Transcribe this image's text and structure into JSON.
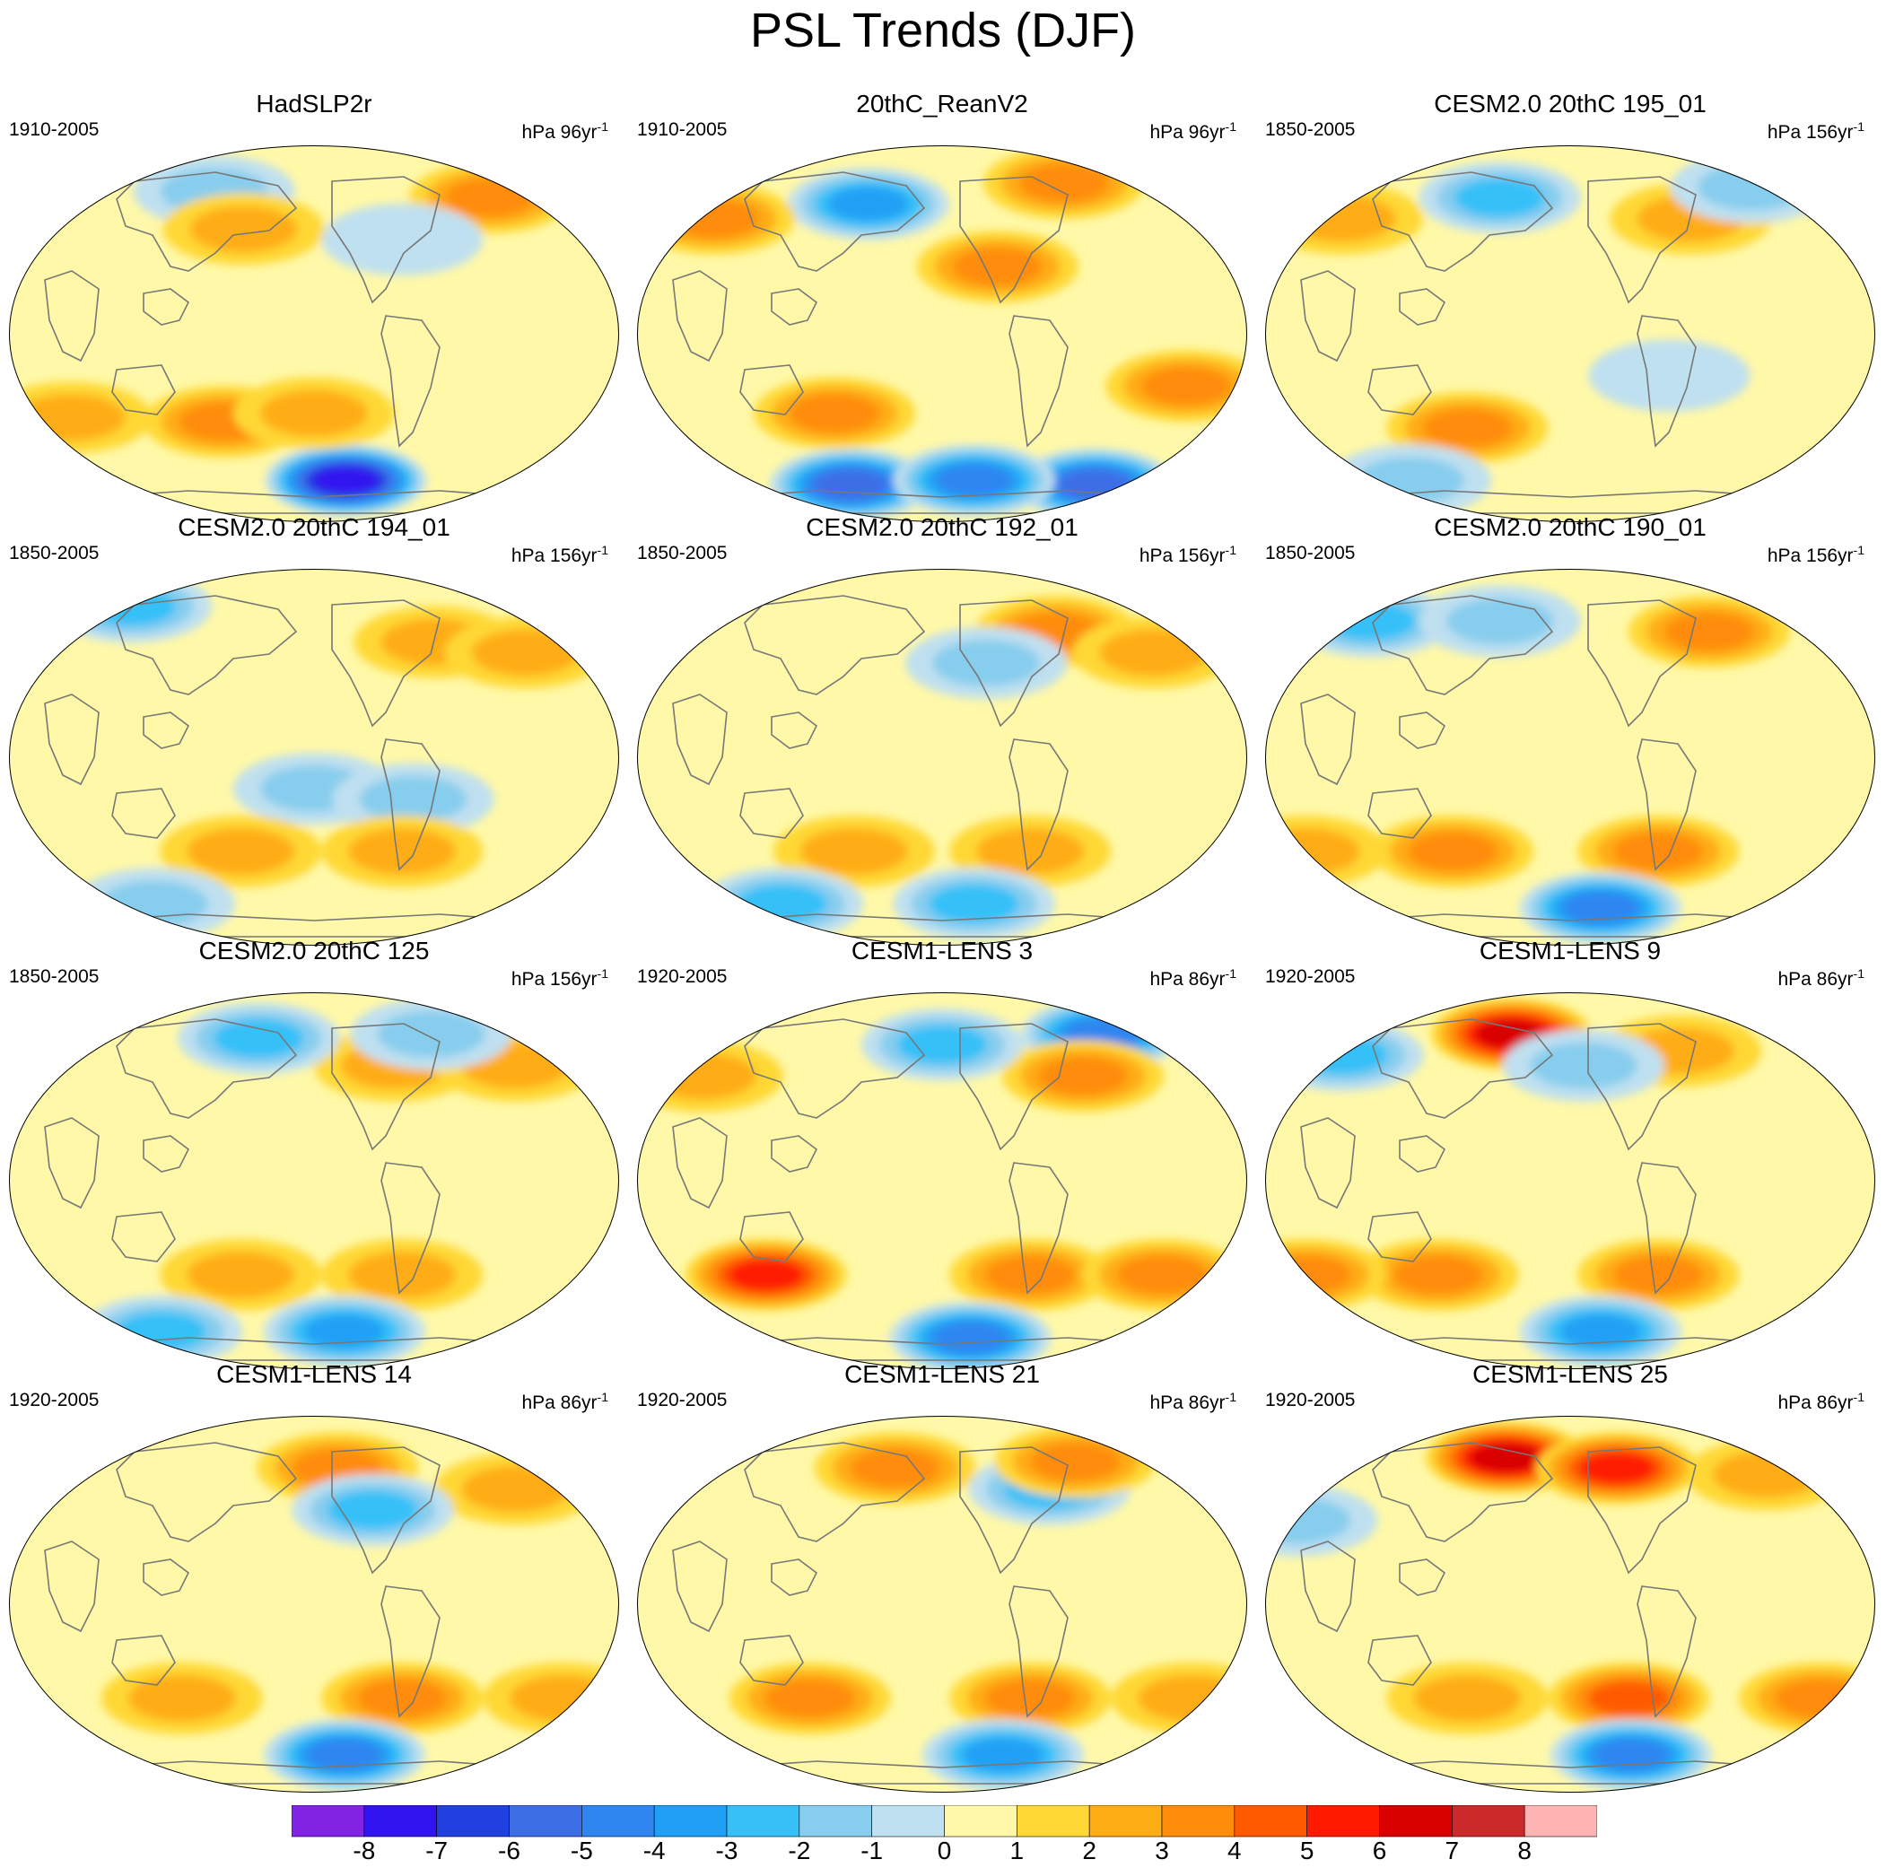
{
  "main_title": "PSL Trends (DJF)",
  "colorbar": {
    "levels": [
      "-8",
      "-7",
      "-6",
      "-5",
      "-4",
      "-3",
      "-2",
      "-1",
      "0",
      "1",
      "2",
      "3",
      "4",
      "5",
      "6",
      "7",
      "8"
    ],
    "colors": [
      "#8224e3",
      "#3214f0",
      "#2040e0",
      "#3d6ee6",
      "#2f86f0",
      "#20a0f5",
      "#35c0f8",
      "#87cdee",
      "#bfe0f0",
      "#fff8a8",
      "#ffd836",
      "#ffad14",
      "#ff8c0a",
      "#ff5a00",
      "#ff1a00",
      "#d90000",
      "#cc2a2a",
      "#ffb4b4"
    ]
  },
  "chart_data": [
    {
      "type": "heatmap",
      "title": "HadSLP2r",
      "period": "1910-2005",
      "units": "hPa 96yr",
      "units_sup": "-1",
      "field": [
        {
          "lon": 180,
          "lat": -70,
          "v": -8
        },
        {
          "lon": 90,
          "lat": -42,
          "v": 3
        },
        {
          "lon": -60,
          "lat": 65,
          "v": 2.5
        },
        {
          "lon": 60,
          "lat": 68,
          "v": -2
        },
        {
          "lon": -10,
          "lat": -40,
          "v": 1.5
        },
        {
          "lon": 150,
          "lat": -38,
          "v": 2
        },
        {
          "lon": -150,
          "lat": 45,
          "v": -1
        },
        {
          "lon": 100,
          "lat": 50,
          "v": 1.5
        }
      ]
    },
    {
      "type": "heatmap",
      "title": "20thC_ReanV2",
      "period": "1910-2005",
      "units": "hPa 96yr",
      "units_sup": "-1",
      "field": [
        {
          "lon": 60,
          "lat": -72,
          "v": -6
        },
        {
          "lon": -60,
          "lat": -72,
          "v": -6
        },
        {
          "lon": 180,
          "lat": -70,
          "v": -5
        },
        {
          "lon": 90,
          "lat": 62,
          "v": -4
        },
        {
          "lon": -175,
          "lat": 32,
          "v": 2.5
        },
        {
          "lon": -90,
          "lat": 72,
          "v": 3
        },
        {
          "lon": -20,
          "lat": 55,
          "v": 3
        },
        {
          "lon": -60,
          "lat": -25,
          "v": 3
        },
        {
          "lon": 80,
          "lat": -38,
          "v": 3
        }
      ]
    },
    {
      "type": "heatmap",
      "title": "CESM2.0 20thC 195_01",
      "period": "1850-2005",
      "units": "hPa 156yr",
      "units_sup": "-1",
      "field": [
        {
          "lon": 80,
          "lat": -45,
          "v": 3
        },
        {
          "lon": -120,
          "lat": 55,
          "v": 2
        },
        {
          "lon": -20,
          "lat": 55,
          "v": 2
        },
        {
          "lon": 90,
          "lat": 65,
          "v": -2.5
        },
        {
          "lon": -40,
          "lat": 70,
          "v": -2
        },
        {
          "lon": -150,
          "lat": -20,
          "v": -1
        },
        {
          "lon": 0,
          "lat": -70,
          "v": -1.5
        }
      ]
    },
    {
      "type": "heatmap",
      "title": "CESM2.0 20thC 194_01",
      "period": "1850-2005",
      "units": "hPa 156yr",
      "units_sup": "-1",
      "field": [
        {
          "lon": -120,
          "lat": 55,
          "v": 2
        },
        {
          "lon": -60,
          "lat": 50,
          "v": 2
        },
        {
          "lon": -30,
          "lat": 72,
          "v": -2.5
        },
        {
          "lon": 150,
          "lat": -15,
          "v": -1.5
        },
        {
          "lon": -150,
          "lat": -20,
          "v": -1.5
        },
        {
          "lon": 100,
          "lat": -45,
          "v": 1.5
        },
        {
          "lon": -150,
          "lat": -45,
          "v": 1.5
        },
        {
          "lon": 0,
          "lat": -70,
          "v": -1.5
        }
      ]
    },
    {
      "type": "heatmap",
      "title": "CESM2.0 20thC 192_01",
      "period": "1850-2005",
      "units": "hPa 156yr",
      "units_sup": "-1",
      "field": [
        {
          "lon": -120,
          "lat": 60,
          "v": 2.5
        },
        {
          "lon": -60,
          "lat": 50,
          "v": 2
        },
        {
          "lon": 180,
          "lat": 45,
          "v": -1.5
        },
        {
          "lon": -150,
          "lat": -45,
          "v": 2
        },
        {
          "lon": 90,
          "lat": -45,
          "v": 2
        },
        {
          "lon": 0,
          "lat": -70,
          "v": -2.5
        },
        {
          "lon": 180,
          "lat": -70,
          "v": -2.5
        }
      ]
    },
    {
      "type": "heatmap",
      "title": "CESM2.0 20thC 190_01",
      "period": "1850-2005",
      "units": "hPa 156yr",
      "units_sup": "-1",
      "field": [
        {
          "lon": -100,
          "lat": 60,
          "v": 2.5
        },
        {
          "lon": -20,
          "lat": 65,
          "v": -2.5
        },
        {
          "lon": 90,
          "lat": 65,
          "v": -2
        },
        {
          "lon": 70,
          "lat": -45,
          "v": 3
        },
        {
          "lon": -150,
          "lat": -45,
          "v": 2.5
        },
        {
          "lon": -30,
          "lat": -45,
          "v": 2
        },
        {
          "lon": 180,
          "lat": -72,
          "v": -4.5
        }
      ]
    },
    {
      "type": "heatmap",
      "title": "CESM2.0 20thC 125",
      "period": "1850-2005",
      "units": "hPa 156yr",
      "units_sup": "-1",
      "field": [
        {
          "lon": -150,
          "lat": 55,
          "v": 2
        },
        {
          "lon": -60,
          "lat": 55,
          "v": 2
        },
        {
          "lon": 100,
          "lat": 68,
          "v": -2.5
        },
        {
          "lon": -100,
          "lat": 70,
          "v": -2
        },
        {
          "lon": 100,
          "lat": -45,
          "v": 2
        },
        {
          "lon": -150,
          "lat": -45,
          "v": 2
        },
        {
          "lon": 180,
          "lat": -72,
          "v": -3.5
        },
        {
          "lon": 0,
          "lat": -72,
          "v": -3
        }
      ]
    },
    {
      "type": "heatmap",
      "title": "CESM1-LENS 3",
      "period": "1920-2005",
      "units": "hPa 86yr",
      "units_sup": "-1",
      "field": [
        {
          "lon": 30,
          "lat": -45,
          "v": 5
        },
        {
          "lon": -150,
          "lat": -45,
          "v": 2.5
        },
        {
          "lon": -60,
          "lat": -45,
          "v": 3
        },
        {
          "lon": -60,
          "lat": 70,
          "v": -5
        },
        {
          "lon": -110,
          "lat": 50,
          "v": 2.5
        },
        {
          "lon": -20,
          "lat": 50,
          "v": 2
        },
        {
          "lon": 150,
          "lat": 65,
          "v": -2.5
        },
        {
          "lon": 180,
          "lat": -75,
          "v": -5
        }
      ]
    },
    {
      "type": "heatmap",
      "title": "CESM1-LENS 9",
      "period": "1920-2005",
      "units": "hPa 86yr",
      "units_sup": "-1",
      "field": [
        {
          "lon": 95,
          "lat": 70,
          "v": 6
        },
        {
          "lon": -120,
          "lat": 62,
          "v": 2
        },
        {
          "lon": -30,
          "lat": 60,
          "v": -2.5
        },
        {
          "lon": 160,
          "lat": 55,
          "v": -2
        },
        {
          "lon": 60,
          "lat": -45,
          "v": 3
        },
        {
          "lon": -150,
          "lat": -45,
          "v": 2.5
        },
        {
          "lon": -30,
          "lat": -45,
          "v": 2.5
        },
        {
          "lon": 180,
          "lat": -72,
          "v": -3.5
        }
      ]
    },
    {
      "type": "heatmap",
      "title": "CESM1-LENS 14",
      "period": "1920-2005",
      "units": "hPa 86yr",
      "units_sup": "-1",
      "field": [
        {
          "lon": 170,
          "lat": 65,
          "v": 3
        },
        {
          "lon": -60,
          "lat": 55,
          "v": 2
        },
        {
          "lon": -170,
          "lat": 45,
          "v": -2.5
        },
        {
          "lon": 60,
          "lat": -45,
          "v": 2
        },
        {
          "lon": -150,
          "lat": -45,
          "v": 2.5
        },
        {
          "lon": -40,
          "lat": -45,
          "v": 2
        },
        {
          "lon": 180,
          "lat": -72,
          "v": -4.5
        }
      ]
    },
    {
      "type": "heatmap",
      "title": "CESM1-LENS 21",
      "period": "1920-2005",
      "units": "hPa 86yr",
      "units_sup": "-1",
      "field": [
        {
          "lon": 110,
          "lat": 65,
          "v": 3
        },
        {
          "lon": -130,
          "lat": 55,
          "v": -2.5
        },
        {
          "lon": -90,
          "lat": 68,
          "v": 2.5
        },
        {
          "lon": 60,
          "lat": -45,
          "v": 2.5
        },
        {
          "lon": -150,
          "lat": -45,
          "v": 2.5
        },
        {
          "lon": -40,
          "lat": -45,
          "v": 2
        },
        {
          "lon": -150,
          "lat": -72,
          "v": -4
        }
      ]
    },
    {
      "type": "heatmap",
      "title": "CESM1-LENS 25",
      "period": "1920-2005",
      "units": "hPa 86yr",
      "units_sup": "-1",
      "field": [
        {
          "lon": 90,
          "lat": 70,
          "v": 6
        },
        {
          "lon": -170,
          "lat": 65,
          "v": 5
        },
        {
          "lon": -50,
          "lat": 62,
          "v": 2
        },
        {
          "lon": -30,
          "lat": 40,
          "v": -1.5
        },
        {
          "lon": 80,
          "lat": -45,
          "v": 2
        },
        {
          "lon": -170,
          "lat": -45,
          "v": 4
        },
        {
          "lon": -40,
          "lat": -45,
          "v": 2.5
        },
        {
          "lon": -150,
          "lat": -72,
          "v": -5
        }
      ]
    }
  ]
}
